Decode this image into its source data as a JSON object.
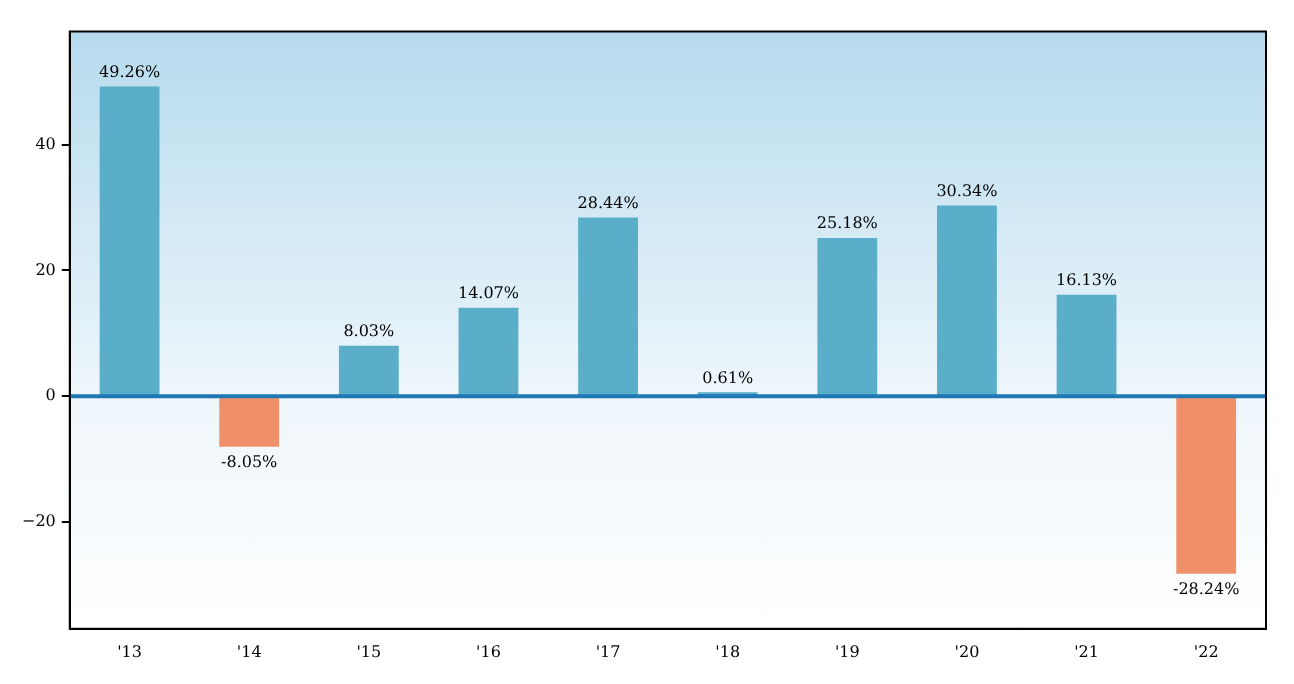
{
  "chart_data": {
    "type": "bar",
    "categories": [
      "'13",
      "'14",
      "'15",
      "'16",
      "'17",
      "'18",
      "'19",
      "'20",
      "'21",
      "'22"
    ],
    "values": [
      49.26,
      -8.05,
      8.03,
      14.07,
      28.44,
      0.61,
      25.18,
      30.34,
      16.13,
      -28.24
    ],
    "colors": [
      "#5aaec9",
      "#f0906a",
      "#5aaec9",
      "#5aaec9",
      "#5aaec9",
      "#5aaec9",
      "#5aaec9",
      "#5aaec9",
      "#5aaec9",
      "#f0906a"
    ],
    "value_labels": [
      "49.26%",
      "-8.05%",
      "8.03%",
      "14.07%",
      "28.44%",
      "0.61%",
      "25.18%",
      "30.34%",
      "16.13%",
      "-28.24%"
    ],
    "ylim": [
      -37,
      58
    ],
    "yticks": [
      {
        "value": -20,
        "label": "−20"
      },
      0,
      20,
      40
    ],
    "ref_lines": [
      {
        "axis": "y",
        "value": 0,
        "color": "#1f77b4"
      }
    ],
    "grid": false,
    "legend": false
  }
}
